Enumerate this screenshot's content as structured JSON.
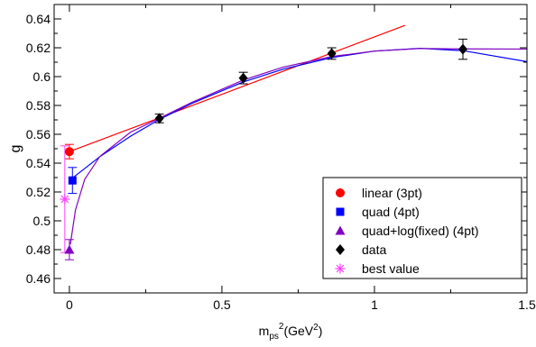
{
  "chart_data": {
    "type": "scatter",
    "title": "",
    "ylabel": "g",
    "xlabel": {
      "base": "m",
      "subscript": "ps",
      "superscript": "2",
      "unit_base": "(GeV",
      "unit_superscript": "2",
      "unit_close": ")"
    },
    "xlim": [
      -0.05,
      1.5
    ],
    "ylim": [
      0.45,
      0.65
    ],
    "x_ticks": [
      0,
      0.5,
      1,
      1.5
    ],
    "x_tick_labels": [
      "0",
      "0.5",
      "1",
      "1.5"
    ],
    "y_ticks": [
      0.46,
      0.48,
      0.5,
      0.52,
      0.54,
      0.56,
      0.58,
      0.6,
      0.62,
      0.64
    ],
    "y_tick_labels": [
      "0.46",
      "0.48",
      "0.5",
      "0.52",
      "0.54",
      "0.56",
      "0.58",
      "0.6",
      "0.62",
      "0.64"
    ],
    "grid": false,
    "legend_position": "bottom-right",
    "series": [
      {
        "name": "linear (3pt)",
        "marker": "circle",
        "color": "#ff0000",
        "points": [
          {
            "x": 0.0,
            "y": 0.548,
            "err": 0.005
          }
        ]
      },
      {
        "name": "quad (4pt)",
        "marker": "square",
        "color": "#0000ff",
        "points": [
          {
            "x": 0.01,
            "y": 0.528,
            "err": 0.009
          }
        ]
      },
      {
        "name": "quad+log(fixed) (4pt)",
        "marker": "triangle",
        "color": "#8000c0",
        "points": [
          {
            "x": 0.0,
            "y": 0.48,
            "err": 0.007
          }
        ]
      },
      {
        "name": "data",
        "marker": "diamond",
        "color": "#000000",
        "points": [
          {
            "x": 0.295,
            "y": 0.571,
            "err": 0.003
          },
          {
            "x": 0.57,
            "y": 0.599,
            "err": 0.004
          },
          {
            "x": 0.86,
            "y": 0.616,
            "err": 0.004
          },
          {
            "x": 1.29,
            "y": 0.619,
            "err": 0.007
          }
        ]
      },
      {
        "name": "best value",
        "marker": "asterisk",
        "color": "#ff40ff",
        "points": [
          {
            "x": -0.015,
            "y": 0.515,
            "err": 0.037
          }
        ]
      }
    ],
    "fit_curves": [
      {
        "color": "#ff0000",
        "x": [
          0.0,
          0.295,
          0.57,
          0.86,
          1.1
        ],
        "y": [
          0.548,
          0.5714,
          0.5933,
          0.6164,
          0.6355
        ]
      },
      {
        "color": "#0000ff",
        "x": [
          0.0,
          0.1,
          0.2,
          0.295,
          0.4,
          0.57,
          0.7,
          0.86,
          1.0,
          1.15,
          1.29,
          1.5
        ],
        "y": [
          0.528,
          0.5445,
          0.5586,
          0.5703,
          0.5813,
          0.5963,
          0.6051,
          0.6132,
          0.6177,
          0.6196,
          0.618,
          0.6104
        ]
      },
      {
        "color": "#8000c0",
        "x": [
          0.003,
          0.02,
          0.05,
          0.1,
          0.2,
          0.295,
          0.4,
          0.57,
          0.7,
          0.86,
          1.0,
          1.15,
          1.29,
          1.5
        ],
        "y": [
          0.4835,
          0.5076,
          0.5287,
          0.5447,
          0.5614,
          0.5711,
          0.582,
          0.5976,
          0.6065,
          0.6139,
          0.6177,
          0.6195,
          0.6192,
          0.6191
        ]
      }
    ]
  }
}
